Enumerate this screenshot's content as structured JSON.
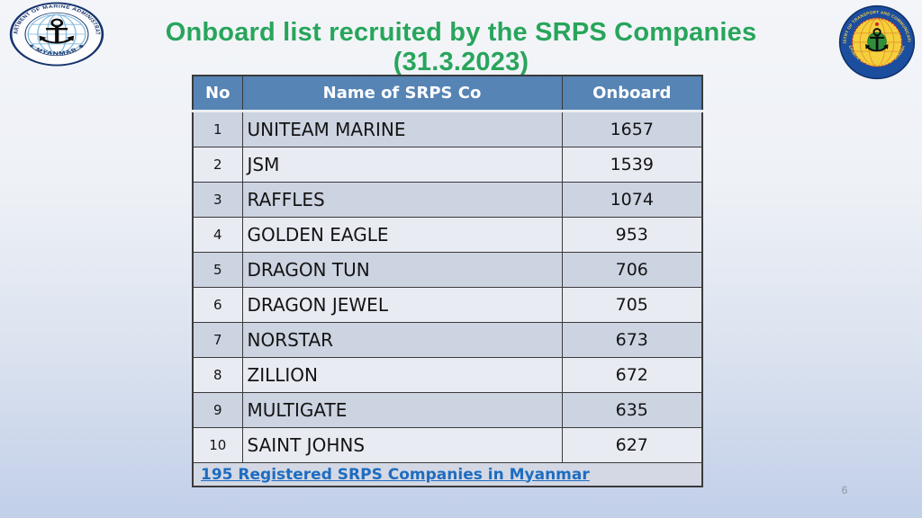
{
  "title": "Onboard list recruited by the SRPS Companies (31.3.2023)",
  "logos": {
    "left": {
      "top_text": "DEPARTMENT OF MARINE ADMINISTRATION",
      "bottom_text": "✦ MYANMAR ✦",
      "anchor_glyph": "⚓"
    },
    "right": {
      "top_text": "MINISTRY OF TRANSPORT AND COMMUNICATIONS",
      "bottom_text": "REPUBLIC OF THE UNION OF MYANMAR",
      "anchor_glyph": "⚓"
    }
  },
  "table": {
    "headers": [
      "No",
      "Name of SRPS Co",
      "Onboard"
    ],
    "rows": [
      {
        "no": "1",
        "name": "UNITEAM MARINE",
        "onboard": "1657"
      },
      {
        "no": "2",
        "name": "JSM",
        "onboard": "1539"
      },
      {
        "no": "3",
        "name": "RAFFLES",
        "onboard": "1074"
      },
      {
        "no": "4",
        "name": "GOLDEN EAGLE",
        "onboard": "953"
      },
      {
        "no": "5",
        "name": "DRAGON TUN",
        "onboard": "706"
      },
      {
        "no": "6",
        "name": "DRAGON JEWEL",
        "onboard": "705"
      },
      {
        "no": "7",
        "name": "NORSTAR",
        "onboard": "673"
      },
      {
        "no": "8",
        "name": "ZILLION",
        "onboard": "672"
      },
      {
        "no": "9",
        "name": "MULTIGATE",
        "onboard": "635"
      },
      {
        "no": "10",
        "name": "SAINT JOHNS",
        "onboard": "627"
      }
    ],
    "footer_link": "195 Registered SRPS Companies in Myanmar"
  },
  "page_number": "6",
  "colors": {
    "title-green": "#28a55b",
    "header-bg": "#5584b5",
    "row-odd": "#ccd3e1",
    "row-even": "#e9ebf3",
    "footer-bg": "#d3d8e4",
    "link-blue": "#1e6cc0"
  }
}
